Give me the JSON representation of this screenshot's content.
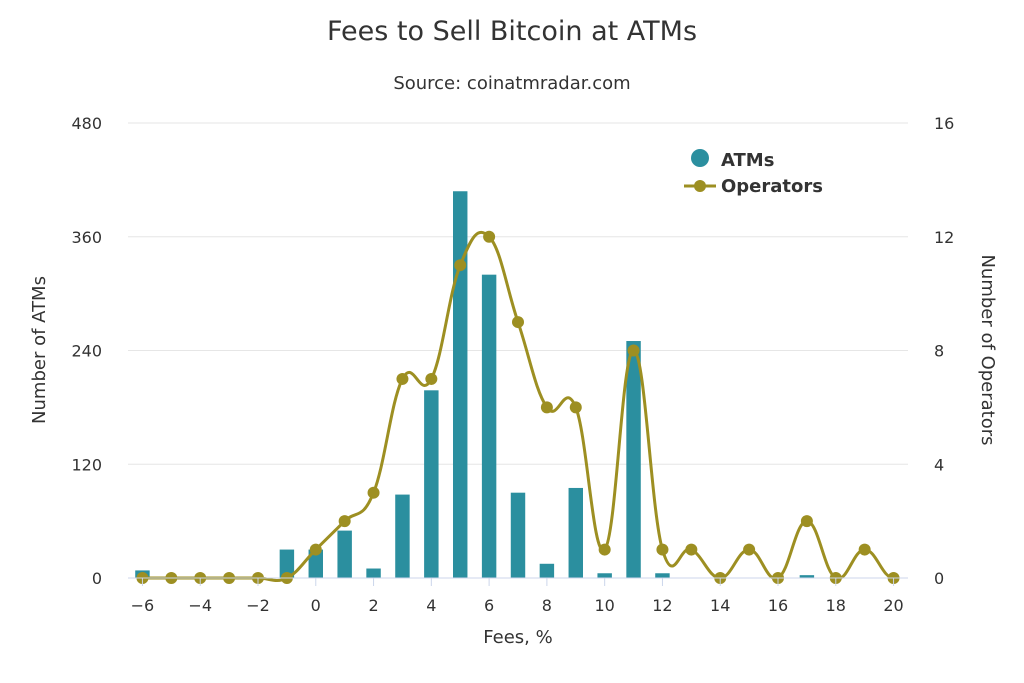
{
  "chart_data": {
    "type": "bar",
    "title": "Fees to Sell Bitcoin at ATMs",
    "subtitle": "Source: coinatmradar.com",
    "xlabel": "Fees, %",
    "ylabel": "Number of ATMs",
    "y2label": "Number of Operators",
    "xlim": [
      -6.5,
      20.5
    ],
    "ylim": [
      0,
      480
    ],
    "y2lim": [
      0,
      16
    ],
    "x_ticks": [
      -6,
      -4,
      -2,
      0,
      2,
      4,
      6,
      8,
      10,
      12,
      14,
      16,
      18,
      20
    ],
    "y_ticks": [
      0,
      120,
      240,
      360,
      480
    ],
    "y2_ticks": [
      0,
      4,
      8,
      12,
      16
    ],
    "grid": true,
    "legend_position": "top-right",
    "colors": {
      "atms": "#2b8f9f",
      "operators": "#9d8f22",
      "grid": "#e6e6e6",
      "axis": "#ccd6eb",
      "text": "#333333"
    },
    "series": [
      {
        "name": "ATMs",
        "type": "bar",
        "axis": "left",
        "x": [
          -6,
          -5,
          -4,
          -3,
          -2,
          -1,
          0,
          1,
          2,
          3,
          4,
          5,
          6,
          7,
          8,
          9,
          10,
          11,
          12,
          13,
          14,
          15,
          16,
          17,
          18,
          19,
          20
        ],
        "values": [
          8,
          0,
          0,
          0,
          0,
          30,
          30,
          50,
          10,
          88,
          198,
          408,
          320,
          90,
          15,
          95,
          5,
          250,
          5,
          0,
          0,
          0,
          0,
          3,
          0,
          0,
          0
        ]
      },
      {
        "name": "Operators",
        "type": "line",
        "axis": "right",
        "smooth": true,
        "x": [
          -6,
          -5,
          -4,
          -3,
          -2,
          -1,
          0,
          1,
          2,
          3,
          4,
          5,
          6,
          7,
          8,
          9,
          10,
          11,
          12,
          13,
          14,
          15,
          16,
          17,
          18,
          19,
          20
        ],
        "values": [
          0,
          0,
          0,
          0,
          0,
          0,
          1,
          2,
          3,
          7,
          7,
          11,
          12,
          9,
          6,
          6,
          1,
          8,
          1,
          1,
          0,
          1,
          0,
          2,
          0,
          1,
          0
        ]
      }
    ]
  }
}
